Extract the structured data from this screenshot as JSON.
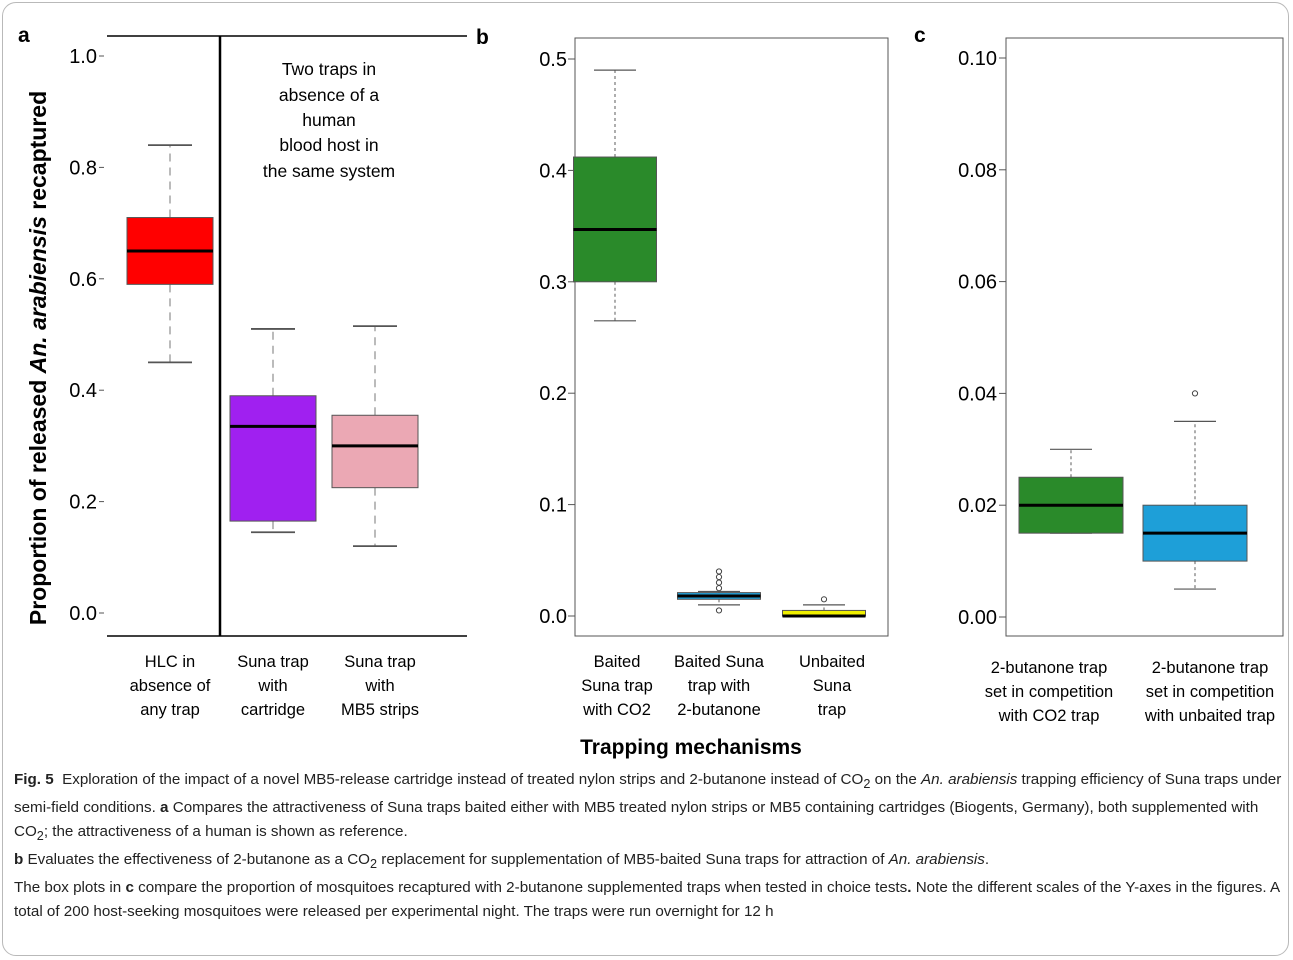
{
  "chart_data": [
    {
      "panel": "a",
      "type": "box",
      "ylabel": "Proportion of released An. arabiensis recaptured",
      "ylim": [
        0,
        1
      ],
      "yticks": [
        "0.0",
        "0.2",
        "0.4",
        "0.6",
        "0.8",
        "1.0"
      ],
      "annotation": [
        "Two traps in",
        "absence of a",
        "human",
        "blood host in",
        "the same system"
      ],
      "categories": [
        [
          "HLC in",
          "absence of",
          "any trap"
        ],
        [
          "Suna trap",
          "with",
          "cartridge"
        ],
        [
          "Suna trap",
          "with",
          "MB5 strips"
        ]
      ],
      "boxes": [
        {
          "min": 0.45,
          "q1": 0.59,
          "median": 0.65,
          "q3": 0.71,
          "max": 0.84,
          "outliers": [],
          "color": "#ff0000"
        },
        {
          "min": 0.145,
          "q1": 0.165,
          "median": 0.335,
          "q3": 0.39,
          "max": 0.51,
          "outliers": [],
          "color": "#a020f0"
        },
        {
          "min": 0.12,
          "q1": 0.225,
          "median": 0.3,
          "q3": 0.355,
          "max": 0.515,
          "outliers": [],
          "color": "#eba8b4"
        }
      ]
    },
    {
      "panel": "b",
      "type": "box",
      "ylim": [
        0,
        0.5
      ],
      "yticks": [
        "0.0",
        "0.1",
        "0.2",
        "0.3",
        "0.4",
        "0.5"
      ],
      "categories": [
        [
          "Baited",
          "Suna trap",
          "with CO2"
        ],
        [
          "Baited Suna",
          "trap with",
          "2-butanone"
        ],
        [
          "Unbaited",
          "Suna",
          "trap"
        ]
      ],
      "boxes": [
        {
          "min": 0.265,
          "q1": 0.3,
          "median": 0.347,
          "q3": 0.412,
          "max": 0.49,
          "outliers": [],
          "color": "#2a8a2a"
        },
        {
          "min": 0.01,
          "q1": 0.015,
          "median": 0.018,
          "q3": 0.021,
          "max": 0.022,
          "outliers": [
            0.005,
            0.025,
            0.03,
            0.035,
            0.04
          ],
          "color": "#1e9fd8"
        },
        {
          "min": 0.0,
          "q1": 0.0,
          "median": 0.0,
          "q3": 0.005,
          "max": 0.01,
          "outliers": [
            0.015
          ],
          "color": "#f0f000"
        }
      ]
    },
    {
      "panel": "c",
      "type": "box",
      "ylim": [
        0,
        0.1
      ],
      "yticks": [
        "0.00",
        "0.02",
        "0.04",
        "0.06",
        "0.08",
        "0.10"
      ],
      "categories": [
        [
          "2-butanone trap",
          "set in competition",
          "with CO2 trap"
        ],
        [
          "2-butanone trap",
          "set in competition",
          "with unbaited trap"
        ]
      ],
      "boxes": [
        {
          "min": 0.015,
          "q1": 0.015,
          "median": 0.02,
          "q3": 0.025,
          "max": 0.03,
          "outliers": [],
          "color": "#2a8a2a"
        },
        {
          "min": 0.005,
          "q1": 0.01,
          "median": 0.015,
          "q3": 0.02,
          "max": 0.035,
          "outliers": [
            0.04
          ],
          "color": "#1e9fd8"
        }
      ]
    }
  ],
  "xlabel": "Trapping mechanisms",
  "caption": {
    "fig_label": "Fig. 5",
    "part1": "Exploration of the impact of a novel MB5-release cartridge instead of treated nylon strips and 2-butanone instead of CO",
    "sub2": "2",
    "part2": " on the ",
    "species_a": "An.",
    "species_b": "arabiensis",
    "part3": " trapping efficiency of Suna traps under semi-field conditions. ",
    "ref_a": "a",
    "part4": " Compares the attractiveness of Suna traps baited either with MB5 treated nylon strips or MB5 containing cartridges (Biogents, Germany), both supplemented with CO",
    "part5": "; the attractiveness of a human is shown as reference.",
    "ref_b": "b",
    "part6": " Evaluates the effectiveness of 2-butanone as a CO",
    "part7": " replacement for supplementation of MB5-baited Suna traps for attraction of ",
    "species_full": "An. arabiensis",
    "part8": ".",
    "part9": "The box plots in ",
    "ref_c": "c",
    "part10": " compare the proportion of mosquitoes recaptured with 2-butanone supplemented traps when tested in choice tests",
    "dot": ".",
    "part11": " Note the different scales of the Y-axes in the figures. A total of 200 host-seeking mosquitoes were released per experimental night. The traps were run overnight for 12 h"
  }
}
